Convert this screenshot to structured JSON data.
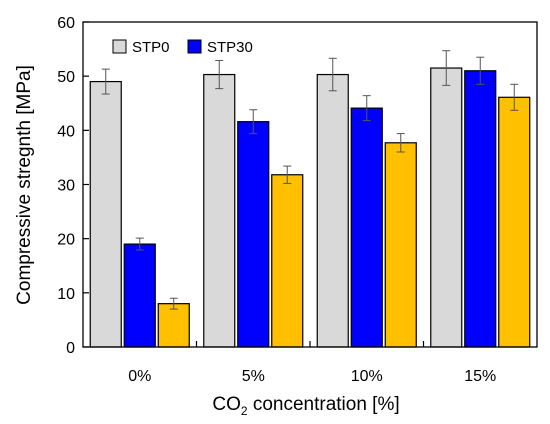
{
  "chart_data": {
    "type": "bar",
    "ylabel": "Compressive stregnth [MPa]",
    "xlabel": {
      "prefix": "CO",
      "subscript": "2",
      "suffix": " concentration [%]"
    },
    "ylim": [
      0,
      60
    ],
    "yticks": [
      "0",
      "10",
      "20",
      "30",
      "40",
      "50",
      "60"
    ],
    "categories": [
      "0%",
      "5%",
      "10%",
      "15%"
    ],
    "legend_position": "top-left",
    "grid": false,
    "series": [
      {
        "name": "STP0",
        "color": "#d9d9d9",
        "values": [
          49.0,
          50.3,
          50.3,
          51.5
        ],
        "errors": [
          2.3,
          2.6,
          3.0,
          3.2
        ]
      },
      {
        "name": "STP30",
        "color": "#0000ff",
        "values": [
          19.0,
          41.6,
          44.1,
          51.0
        ],
        "errors": [
          1.1,
          2.2,
          2.3,
          2.5
        ]
      },
      {
        "color": "#ffc000",
        "values": [
          8.0,
          31.8,
          37.7,
          46.1
        ],
        "errors": [
          1.0,
          1.6,
          1.7,
          2.4
        ]
      }
    ]
  }
}
